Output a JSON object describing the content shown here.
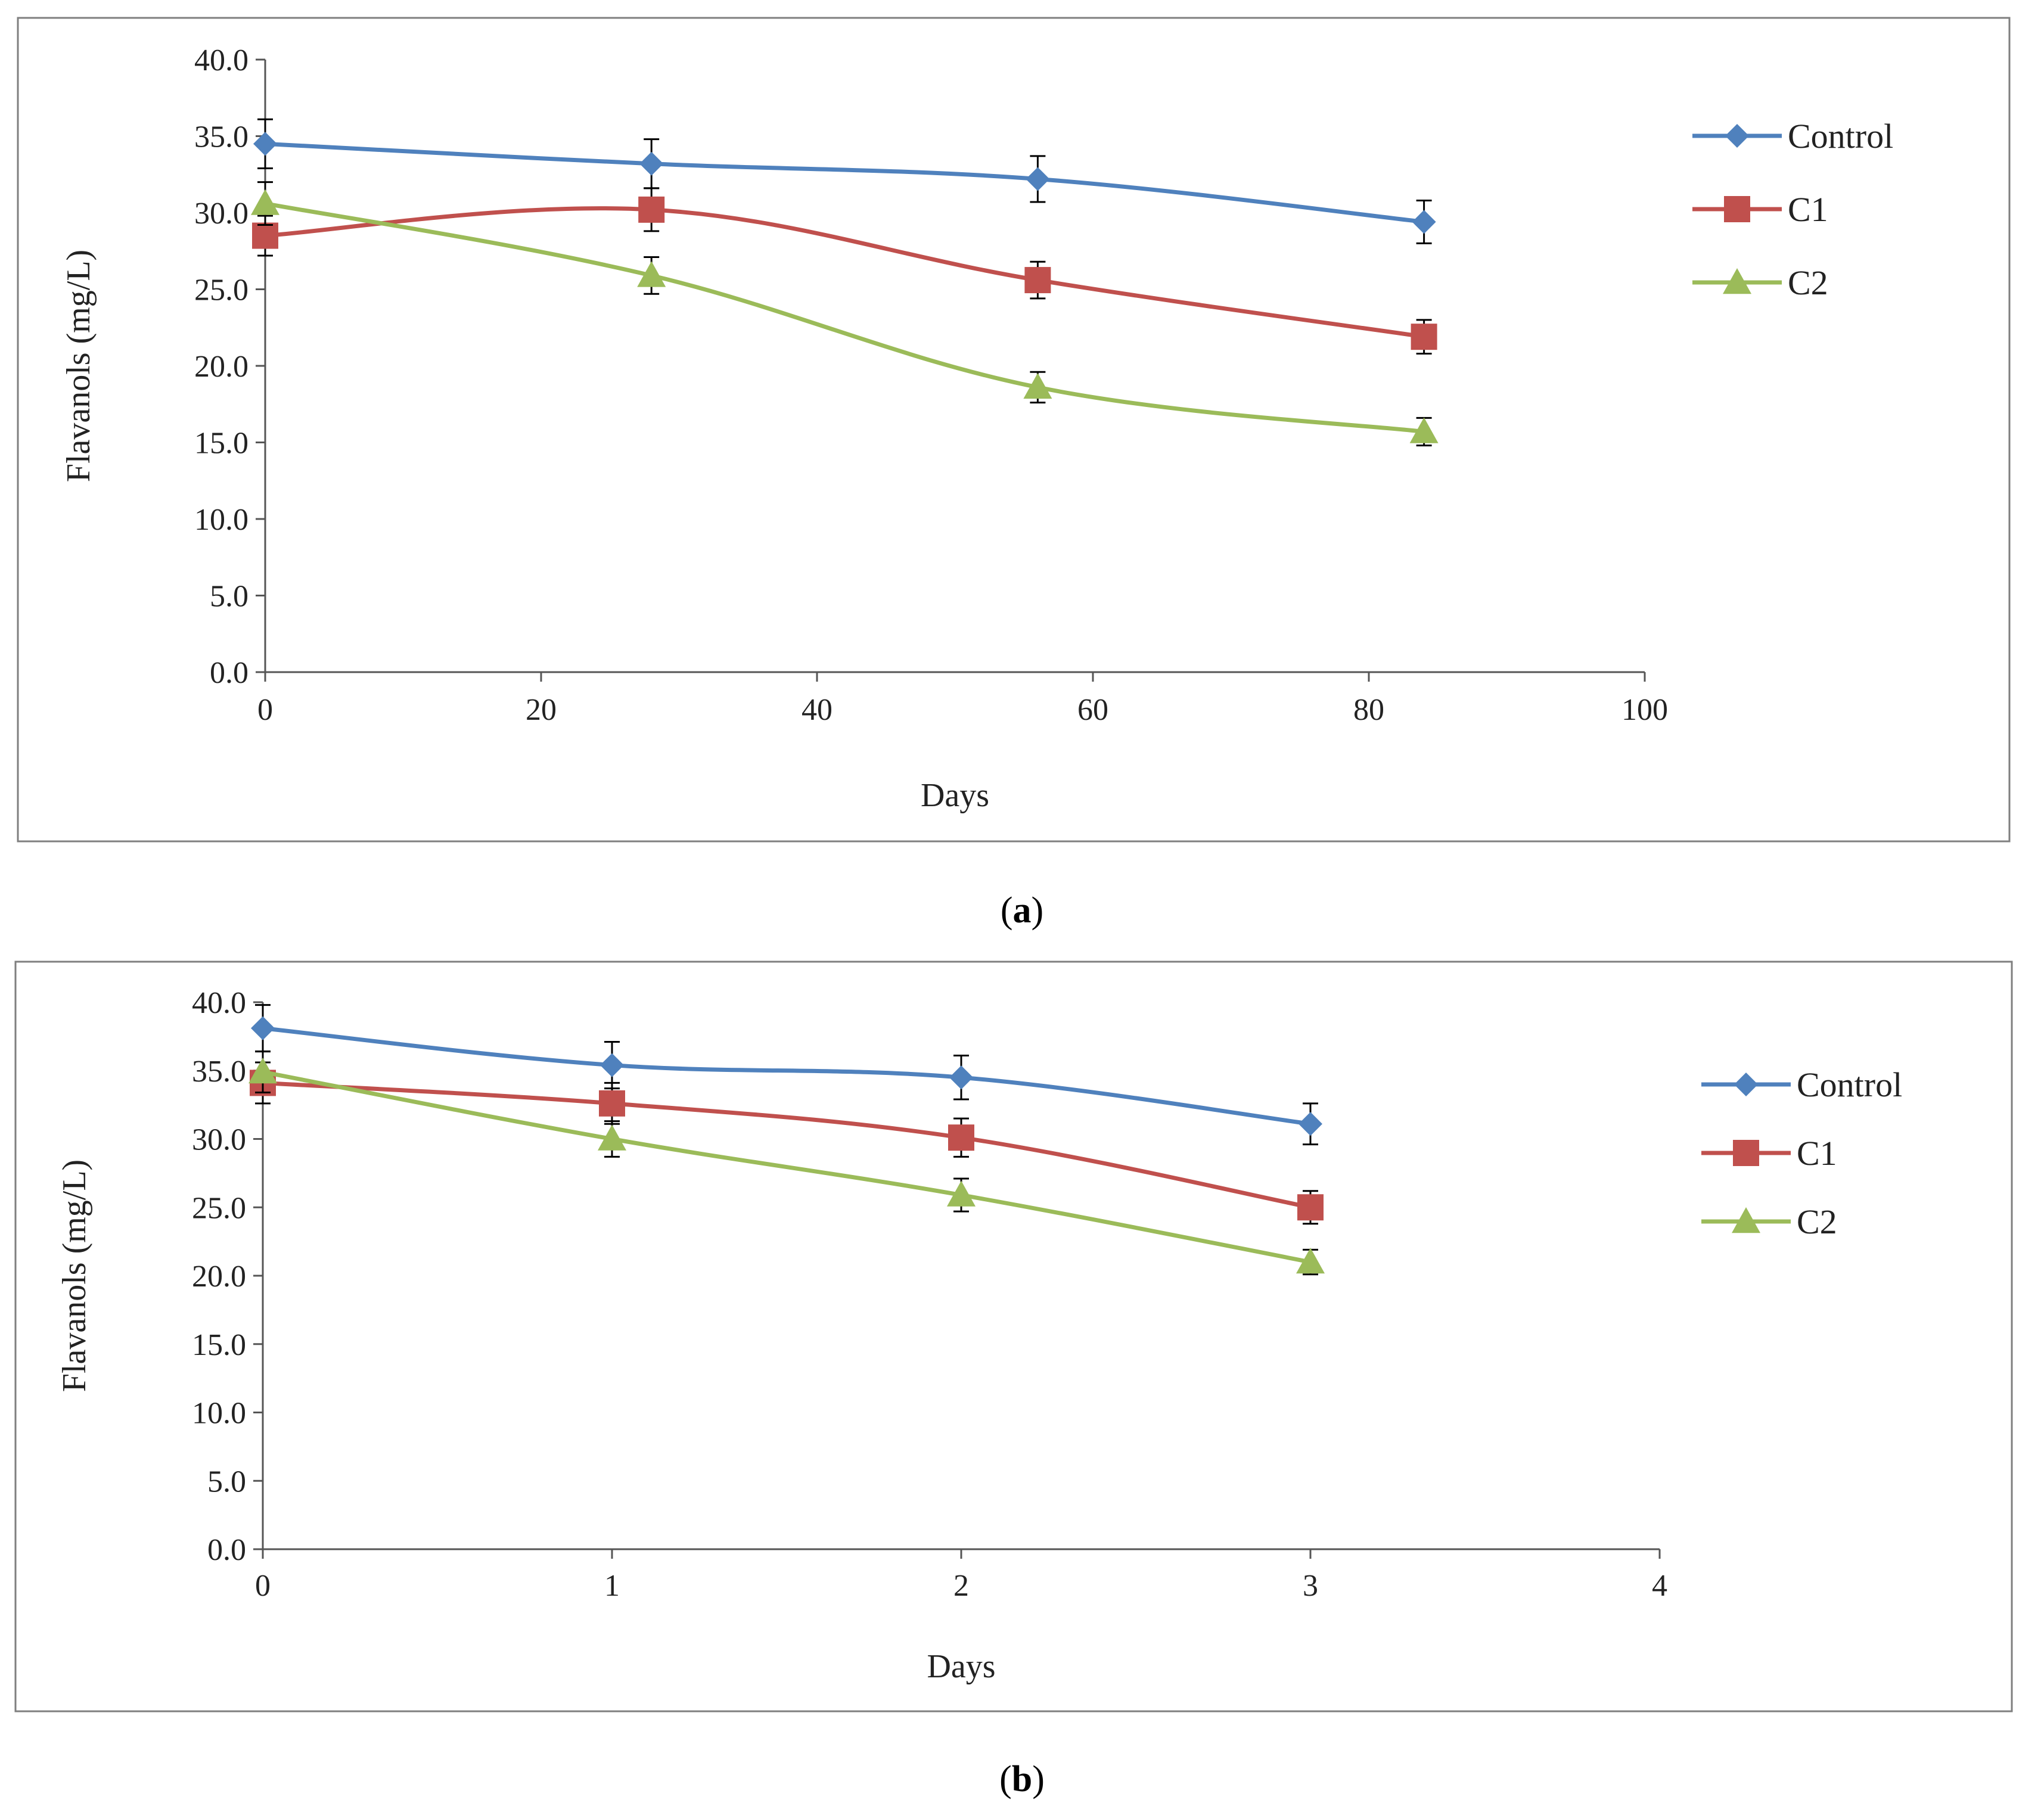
{
  "colors": {
    "Control": "#4F81BD",
    "C1": "#C0504D",
    "C2": "#9BBB59",
    "axis": "#555555",
    "frame": "#7f7f7f",
    "errorbar": "#000000"
  },
  "figure": {
    "panel_a_label": "a",
    "panel_b_label": "b"
  },
  "chart_data": [
    {
      "type": "line",
      "title": "",
      "xlabel": "Days",
      "ylabel": "Flavanols (mg/L)",
      "xlim": [
        0,
        100
      ],
      "ylim": [
        0,
        40
      ],
      "xticks": [
        0,
        20,
        40,
        60,
        80,
        100
      ],
      "xtick_labels": [
        "0",
        "20",
        "40",
        "60",
        "80",
        "100"
      ],
      "yticks": [
        0,
        5,
        10,
        15,
        20,
        25,
        30,
        35,
        40
      ],
      "ytick_labels": [
        "0.0",
        "5.0",
        "10.0",
        "15.0",
        "20.0",
        "25.0",
        "30.0",
        "35.0",
        "40.0"
      ],
      "legend_position": "right",
      "series": [
        {
          "name": "Control",
          "marker": "diamond",
          "x": [
            0,
            28,
            56,
            84
          ],
          "y": [
            34.5,
            33.2,
            32.2,
            29.4
          ],
          "err": [
            1.6,
            1.6,
            1.5,
            1.4
          ]
        },
        {
          "name": "C1",
          "marker": "square",
          "x": [
            0,
            28,
            56,
            84
          ],
          "y": [
            28.5,
            30.2,
            25.6,
            21.9
          ],
          "err": [
            1.3,
            1.4,
            1.2,
            1.1
          ]
        },
        {
          "name": "C2",
          "marker": "triangle",
          "x": [
            0,
            28,
            56,
            84
          ],
          "y": [
            30.6,
            25.9,
            18.6,
            15.7
          ],
          "err": [
            1.4,
            1.2,
            1.0,
            0.9
          ]
        }
      ]
    },
    {
      "type": "line",
      "title": "",
      "xlabel": "Days",
      "ylabel": "Flavanols (mg/L)",
      "xlim": [
        0,
        4
      ],
      "ylim": [
        0,
        40
      ],
      "xticks": [
        0,
        1,
        2,
        3,
        4
      ],
      "xtick_labels": [
        "0",
        "1",
        "2",
        "3",
        "4"
      ],
      "yticks": [
        0,
        5,
        10,
        15,
        20,
        25,
        30,
        35,
        40
      ],
      "ytick_labels": [
        "0.0",
        "5.0",
        "10.0",
        "15.0",
        "20.0",
        "25.0",
        "30.0",
        "35.0",
        "40.0"
      ],
      "legend_position": "right",
      "series": [
        {
          "name": "Control",
          "marker": "diamond",
          "x": [
            0,
            1,
            2,
            3
          ],
          "y": [
            38.1,
            35.4,
            34.5,
            31.1
          ],
          "err": [
            1.7,
            1.7,
            1.6,
            1.5
          ]
        },
        {
          "name": "C1",
          "marker": "square",
          "x": [
            0,
            1,
            2,
            3
          ],
          "y": [
            34.1,
            32.6,
            30.1,
            25.0
          ],
          "err": [
            1.5,
            1.5,
            1.4,
            1.2
          ]
        },
        {
          "name": "C2",
          "marker": "triangle",
          "x": [
            0,
            1,
            2,
            3
          ],
          "y": [
            34.9,
            30.0,
            25.9,
            21.0
          ],
          "err": [
            1.5,
            1.3,
            1.2,
            0.9
          ]
        }
      ]
    }
  ]
}
